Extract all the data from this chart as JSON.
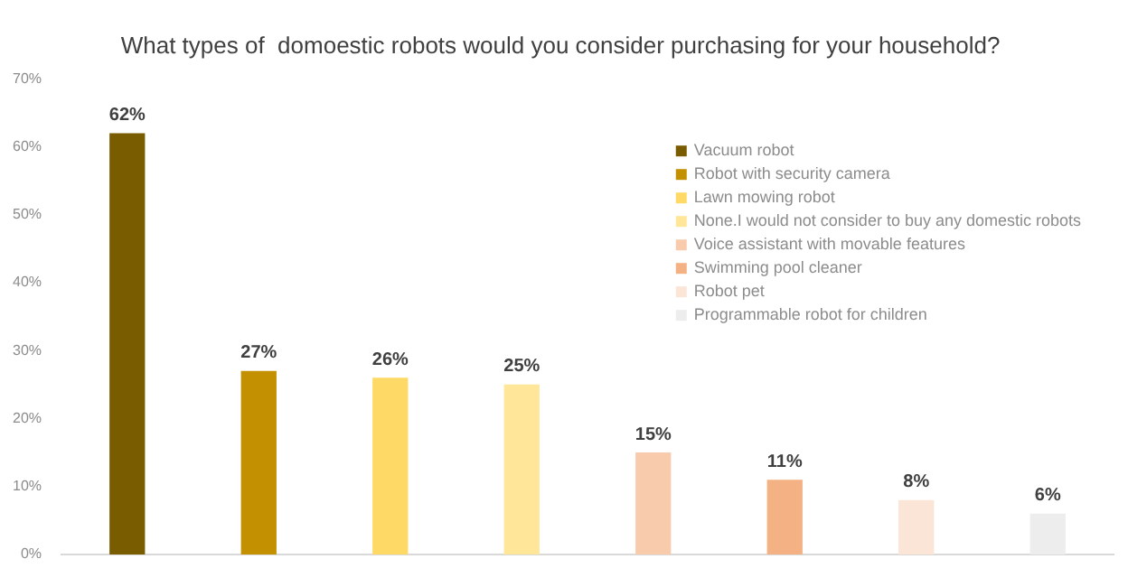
{
  "chart_data": {
    "type": "bar",
    "title": "What types of  domoestic robots would you consider purchasing for your household?",
    "categories": [
      null,
      null,
      null,
      null,
      null,
      null,
      null,
      null
    ],
    "series": [
      {
        "name": "Vacuum robot",
        "color": "#7a5c00",
        "values": [
          62,
          null,
          null,
          null,
          null,
          null,
          null,
          null
        ],
        "value_labels": [
          "62%",
          null,
          null,
          null,
          null,
          null,
          null,
          null
        ]
      },
      {
        "name": "Robot with security camera",
        "color": "#c29000",
        "values": [
          null,
          27,
          null,
          null,
          null,
          null,
          null,
          null
        ],
        "value_labels": [
          null,
          "27%",
          null,
          null,
          null,
          null,
          null,
          null
        ]
      },
      {
        "name": "Lawn mowing robot",
        "color": "#ffd966",
        "values": [
          null,
          null,
          26,
          null,
          null,
          null,
          null,
          null
        ],
        "value_labels": [
          null,
          null,
          "26%",
          null,
          null,
          null,
          null,
          null
        ]
      },
      {
        "name": "None.I would not consider to buy any domestic robots",
        "color": "#ffe699",
        "values": [
          null,
          null,
          null,
          25,
          null,
          null,
          null,
          null
        ],
        "value_labels": [
          null,
          null,
          null,
          "25%",
          null,
          null,
          null,
          null
        ]
      },
      {
        "name": "Voice assistant with movable features",
        "color": "#f8cbad",
        "values": [
          null,
          null,
          null,
          null,
          15,
          null,
          null,
          null
        ],
        "value_labels": [
          null,
          null,
          null,
          null,
          "15%",
          null,
          null,
          null
        ]
      },
      {
        "name": "Swimming pool cleaner",
        "color": "#f4b183",
        "values": [
          null,
          null,
          null,
          null,
          null,
          11,
          null,
          null
        ],
        "value_labels": [
          null,
          null,
          null,
          null,
          null,
          "11%",
          null,
          null
        ]
      },
      {
        "name": "Robot pet",
        "color": "#fbe5d6",
        "values": [
          null,
          null,
          null,
          null,
          null,
          null,
          8,
          null
        ],
        "value_labels": [
          null,
          null,
          null,
          null,
          null,
          null,
          "8%",
          null
        ]
      },
      {
        "name": "Programmable robot for children",
        "color": "#ededed",
        "values": [
          null,
          null,
          null,
          null,
          null,
          null,
          null,
          6
        ],
        "value_labels": [
          null,
          null,
          null,
          null,
          null,
          null,
          null,
          "6%"
        ]
      }
    ],
    "ylim": [
      0,
      70
    ],
    "yticks": [
      {
        "value": 0,
        "label": "0%"
      },
      {
        "value": 10,
        "label": "10%"
      },
      {
        "value": 20,
        "label": "20%"
      },
      {
        "value": 30,
        "label": "30%"
      },
      {
        "value": 40,
        "label": "40%"
      },
      {
        "value": 50,
        "label": "50%"
      },
      {
        "value": 60,
        "label": "60%"
      },
      {
        "value": 70,
        "label": "70%"
      }
    ],
    "tick_labels": "y",
    "grid": false,
    "legend": "top right"
  }
}
